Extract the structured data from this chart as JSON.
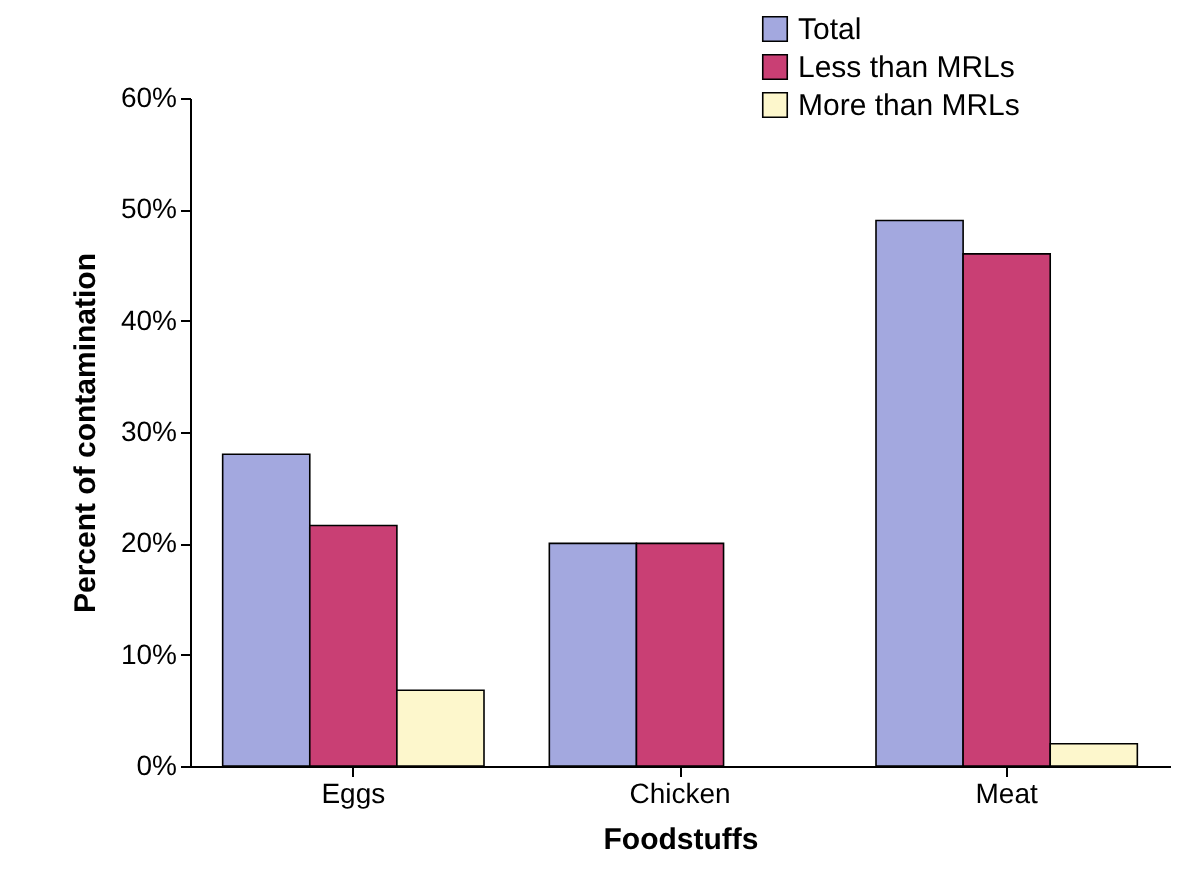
{
  "chart_data": {
    "type": "bar",
    "xlabel": "Foodstuffs",
    "ylabel": "Percent of contamination",
    "categories": [
      "Eggs",
      "Chicken",
      "Meat"
    ],
    "series": [
      {
        "name": "Total",
        "color": "#a3a8df",
        "values": [
          28,
          20,
          49
        ]
      },
      {
        "name": "Less than MRLs",
        "color": "#c93f74",
        "values": [
          21.6,
          20,
          46
        ]
      },
      {
        "name": "More than MRLs",
        "color": "#fdf7cc",
        "values": [
          6.8,
          null,
          2
        ]
      }
    ],
    "ylim": [
      0,
      60
    ],
    "yticks": [
      {
        "value": 0,
        "label": "0%"
      },
      {
        "value": 10,
        "label": "10%"
      },
      {
        "value": 20,
        "label": "20%"
      },
      {
        "value": 30,
        "label": "30%"
      },
      {
        "value": 40,
        "label": "40%"
      },
      {
        "value": 50,
        "label": "50%"
      },
      {
        "value": 60,
        "label": "60%"
      }
    ],
    "grid": false,
    "legend": "top right"
  }
}
